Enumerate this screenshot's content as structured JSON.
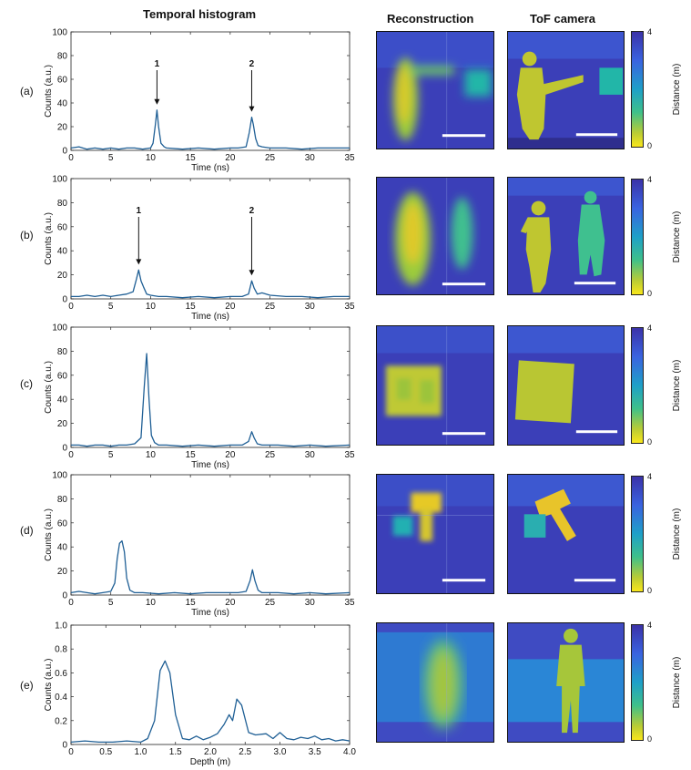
{
  "headers": {
    "histogram": "Temporal histogram",
    "reconstruction": "Reconstruction",
    "tof": "ToF camera"
  },
  "colorbar": {
    "label": "Distance (m)",
    "max": "4",
    "min": "0"
  },
  "colors": {
    "line": "#1f5f95",
    "dark": "#3c2f9c",
    "yellow": "#f4e01e"
  },
  "rows": [
    {
      "label": "(a)"
    },
    {
      "label": "(b)"
    },
    {
      "label": "(c)"
    },
    {
      "label": "(d)"
    },
    {
      "label": "(e)"
    }
  ],
  "chart_data": [
    {
      "type": "line",
      "panel": "(a)",
      "xlabel": "Time (ns)",
      "ylabel": "Counts (a.u.)",
      "xlim": [
        0,
        35
      ],
      "ylim": [
        0,
        100
      ],
      "xticks": [
        0,
        5,
        10,
        15,
        20,
        25,
        30,
        35
      ],
      "yticks": [
        0,
        20,
        40,
        60,
        80,
        100
      ],
      "xtick_labels": [
        "0",
        "5",
        "10",
        "15",
        "20",
        "25",
        "30",
        "35"
      ],
      "ytick_labels": [
        "0",
        "20",
        "40",
        "60",
        "80",
        "100"
      ],
      "x": [
        0,
        1,
        2,
        3,
        4,
        5,
        6,
        7,
        8,
        9,
        10,
        10.3,
        10.6,
        10.8,
        11.0,
        11.3,
        11.7,
        12,
        14,
        16,
        18,
        20,
        21,
        22,
        22.4,
        22.7,
        22.9,
        23.2,
        23.5,
        24,
        25,
        27,
        29,
        31,
        33,
        35
      ],
      "y": [
        2,
        3,
        1,
        2,
        1,
        2,
        1,
        2,
        2,
        1,
        2,
        6,
        22,
        34,
        20,
        6,
        3,
        2,
        1,
        2,
        1,
        2,
        2,
        3,
        15,
        28,
        22,
        10,
        4,
        3,
        2,
        2,
        1,
        2,
        2,
        2
      ],
      "annotations": [
        {
          "text": "1",
          "x": 10.8
        },
        {
          "text": "2",
          "x": 22.7
        }
      ]
    },
    {
      "type": "line",
      "panel": "(b)",
      "xlabel": "Time (ns)",
      "ylabel": "Counts (a.u.)",
      "xlim": [
        0,
        35
      ],
      "ylim": [
        0,
        100
      ],
      "xticks": [
        0,
        5,
        10,
        15,
        20,
        25,
        30,
        35
      ],
      "yticks": [
        0,
        20,
        40,
        60,
        80,
        100
      ],
      "xtick_labels": [
        "0",
        "5",
        "10",
        "15",
        "20",
        "25",
        "30",
        "35"
      ],
      "ytick_labels": [
        "0",
        "20",
        "40",
        "60",
        "80",
        "100"
      ],
      "x": [
        0,
        1,
        2,
        3,
        4,
        5,
        6,
        7,
        7.8,
        8.2,
        8.5,
        8.8,
        9.1,
        9.5,
        10,
        11,
        12,
        14,
        16,
        18,
        20,
        21.5,
        22.3,
        22.7,
        23.0,
        23.4,
        24,
        25,
        27,
        29,
        31,
        33,
        35
      ],
      "y": [
        2,
        2,
        3,
        2,
        3,
        2,
        3,
        4,
        6,
        16,
        24,
        15,
        10,
        4,
        3,
        2,
        2,
        1,
        2,
        1,
        2,
        2,
        4,
        15,
        9,
        4,
        5,
        3,
        2,
        2,
        1,
        2,
        2
      ],
      "annotations": [
        {
          "text": "1",
          "x": 8.5
        },
        {
          "text": "2",
          "x": 22.7
        }
      ]
    },
    {
      "type": "line",
      "panel": "(c)",
      "xlabel": "Time (ns)",
      "ylabel": "Counts (a.u.)",
      "xlim": [
        0,
        35
      ],
      "ylim": [
        0,
        100
      ],
      "xticks": [
        0,
        5,
        10,
        15,
        20,
        25,
        30,
        35
      ],
      "yticks": [
        0,
        20,
        40,
        60,
        80,
        100
      ],
      "xtick_labels": [
        "0",
        "5",
        "10",
        "15",
        "20",
        "25",
        "30",
        "35"
      ],
      "ytick_labels": [
        "0",
        "20",
        "40",
        "60",
        "80",
        "100"
      ],
      "x": [
        0,
        1,
        2,
        3,
        4,
        5,
        6,
        7,
        8,
        8.8,
        9.2,
        9.5,
        9.8,
        10.1,
        10.5,
        11,
        12,
        14,
        16,
        18,
        20,
        21.5,
        22.3,
        22.7,
        23.0,
        23.4,
        24,
        26,
        28,
        30,
        32,
        35
      ],
      "y": [
        2,
        2,
        1,
        2,
        2,
        1,
        2,
        2,
        3,
        8,
        50,
        78,
        40,
        10,
        4,
        2,
        2,
        1,
        2,
        1,
        2,
        2,
        5,
        13,
        8,
        3,
        2,
        2,
        1,
        2,
        1,
        2
      ]
    },
    {
      "type": "line",
      "panel": "(d)",
      "xlabel": "Time (ns)",
      "ylabel": "Counts (a.u.)",
      "xlim": [
        0,
        35
      ],
      "ylim": [
        0,
        100
      ],
      "xticks": [
        0,
        5,
        10,
        15,
        20,
        25,
        30,
        35
      ],
      "yticks": [
        0,
        20,
        40,
        60,
        80,
        100
      ],
      "xtick_labels": [
        "0",
        "5",
        "10",
        "15",
        "20",
        "25",
        "30",
        "35"
      ],
      "ytick_labels": [
        "0",
        "20",
        "40",
        "60",
        "80",
        "100"
      ],
      "x": [
        0,
        1,
        2,
        3,
        4,
        5,
        5.5,
        5.8,
        6.1,
        6.4,
        6.7,
        7.0,
        7.4,
        8,
        9,
        11,
        13,
        15,
        17,
        19,
        21,
        22,
        22.5,
        22.8,
        23.1,
        23.5,
        24,
        26,
        28,
        30,
        32,
        35
      ],
      "y": [
        2,
        3,
        2,
        1,
        2,
        3,
        10,
        30,
        43,
        45,
        36,
        14,
        4,
        2,
        2,
        1,
        2,
        1,
        2,
        2,
        2,
        3,
        12,
        21,
        12,
        4,
        2,
        2,
        1,
        2,
        1,
        2
      ]
    },
    {
      "type": "line",
      "panel": "(e)",
      "xlabel": "Depth (m)",
      "ylabel": "Counts (a.u.)",
      "xlim": [
        0,
        4
      ],
      "ylim": [
        0,
        1
      ],
      "xticks": [
        0,
        0.5,
        1,
        1.5,
        2,
        2.5,
        3,
        3.5,
        4
      ],
      "yticks": [
        0,
        0.2,
        0.4,
        0.6,
        0.8,
        1
      ],
      "xtick_labels": [
        "0",
        "0.5",
        "1.0",
        "1.5",
        "2.0",
        "2.5",
        "3.0",
        "3.5",
        "4.0"
      ],
      "ytick_labels": [
        "0",
        "0.2",
        "0.4",
        "0.6",
        "0.8",
        "1.0"
      ],
      "x": [
        0,
        0.2,
        0.4,
        0.6,
        0.8,
        1.0,
        1.1,
        1.2,
        1.28,
        1.35,
        1.42,
        1.5,
        1.6,
        1.7,
        1.8,
        1.9,
        2.0,
        2.1,
        2.2,
        2.27,
        2.32,
        2.38,
        2.45,
        2.55,
        2.65,
        2.8,
        2.9,
        3.0,
        3.1,
        3.2,
        3.3,
        3.4,
        3.5,
        3.6,
        3.7,
        3.8,
        3.9,
        4.0
      ],
      "y": [
        0.02,
        0.03,
        0.02,
        0.02,
        0.03,
        0.02,
        0.05,
        0.2,
        0.62,
        0.7,
        0.6,
        0.25,
        0.05,
        0.04,
        0.07,
        0.04,
        0.06,
        0.09,
        0.17,
        0.25,
        0.2,
        0.38,
        0.33,
        0.1,
        0.08,
        0.09,
        0.05,
        0.1,
        0.05,
        0.04,
        0.06,
        0.05,
        0.07,
        0.04,
        0.05,
        0.03,
        0.04,
        0.03
      ]
    }
  ]
}
